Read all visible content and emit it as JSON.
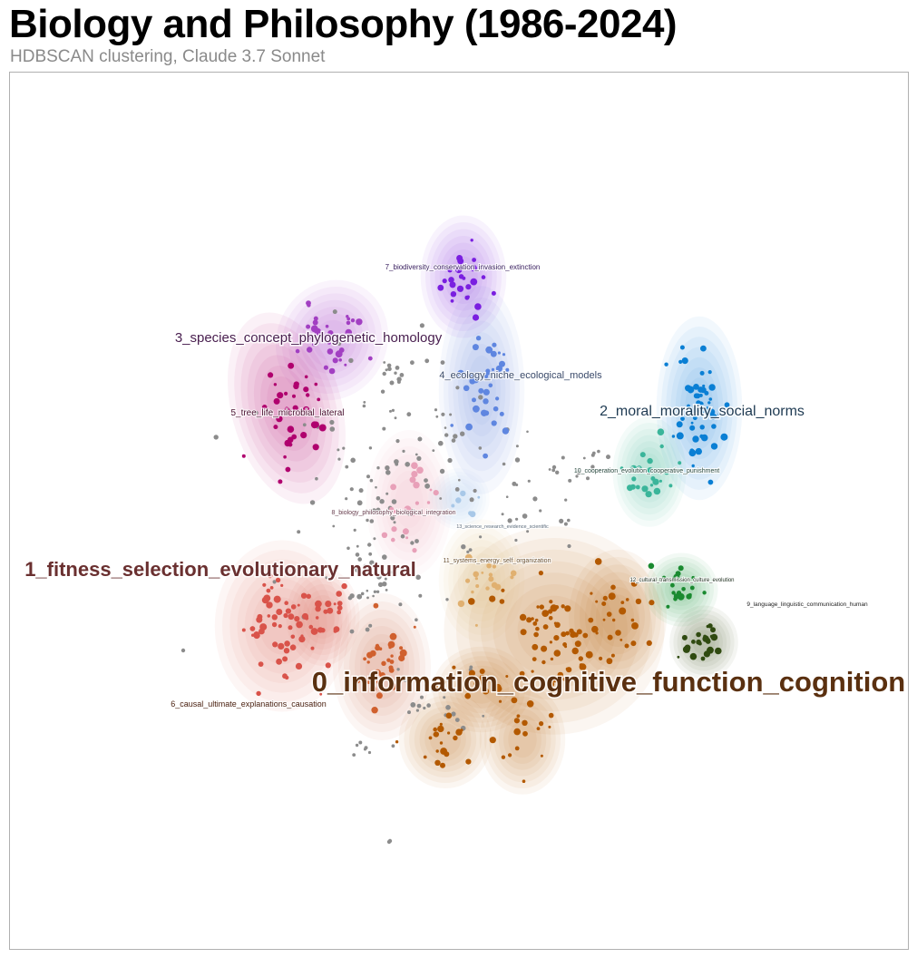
{
  "header": {
    "title": "Biology and Philosophy (1986-2024)",
    "subtitle": "HDBSCAN clustering, Claude 3.7 Sonnet"
  },
  "chart_data": {
    "type": "scatter",
    "title": "Biology and Philosophy (1986-2024)",
    "subtitle": "HDBSCAN clustering, Claude 3.7 Sonnet",
    "xlabel": "",
    "ylabel": "",
    "grid": false,
    "legend": "none",
    "noise_color": "#8c8c8c",
    "clusters": [
      {
        "id": 0,
        "label": "0_information_cognitive_function_cognition",
        "color": "#b35900",
        "label_color": "#5a3010"
      },
      {
        "id": 1,
        "label": "1_fitness_selection_evolutionary_natural",
        "color": "#d9534a",
        "label_color": "#6a3030"
      },
      {
        "id": 2,
        "label": "2_moral_morality_social_norms",
        "color": "#0a7fd4",
        "label_color": "#1e3a52"
      },
      {
        "id": 3,
        "label": "3_species_concept_phylogenetic_homology",
        "color": "#a23fc2",
        "label_color": "#4a2050"
      },
      {
        "id": 4,
        "label": "4_ecology_niche_ecological_models",
        "color": "#5f86e0",
        "label_color": "#3a4a6a"
      },
      {
        "id": 5,
        "label": "5_tree_life_microbial_lateral",
        "color": "#b0006e",
        "label_color": "#4a1030"
      },
      {
        "id": 6,
        "label": "6_causal_ultimate_explanations_causation",
        "color": "#d0602e",
        "label_color": "#4a2010"
      },
      {
        "id": 7,
        "label": "7_biodiversity_conservation_invasion_extinction",
        "color": "#7a1fe0",
        "label_color": "#3a2060"
      },
      {
        "id": 8,
        "label": "8_biology_philosophy_biological_integration",
        "color": "#e8a0b8",
        "label_color": "#6a4050"
      },
      {
        "id": 9,
        "label": "9_language_linguistic_communication_human",
        "color": "#2f4a10",
        "label_color": "#202020"
      },
      {
        "id": 10,
        "label": "10_cooperation_evolution_cooperative_punishment",
        "color": "#3ab59a",
        "label_color": "#2a4a40"
      },
      {
        "id": 11,
        "label": "11_systems_energy_self_organization",
        "color": "#e0b070",
        "label_color": "#6a5030"
      },
      {
        "id": 12,
        "label": "12_cultural_transmission_culture_evolution",
        "color": "#1a8a30",
        "label_color": "#203020"
      },
      {
        "id": 13,
        "label": "13_science_research_evidence_scientific",
        "color": "#a8c8e8",
        "label_color": "#5a6a7a"
      }
    ]
  }
}
